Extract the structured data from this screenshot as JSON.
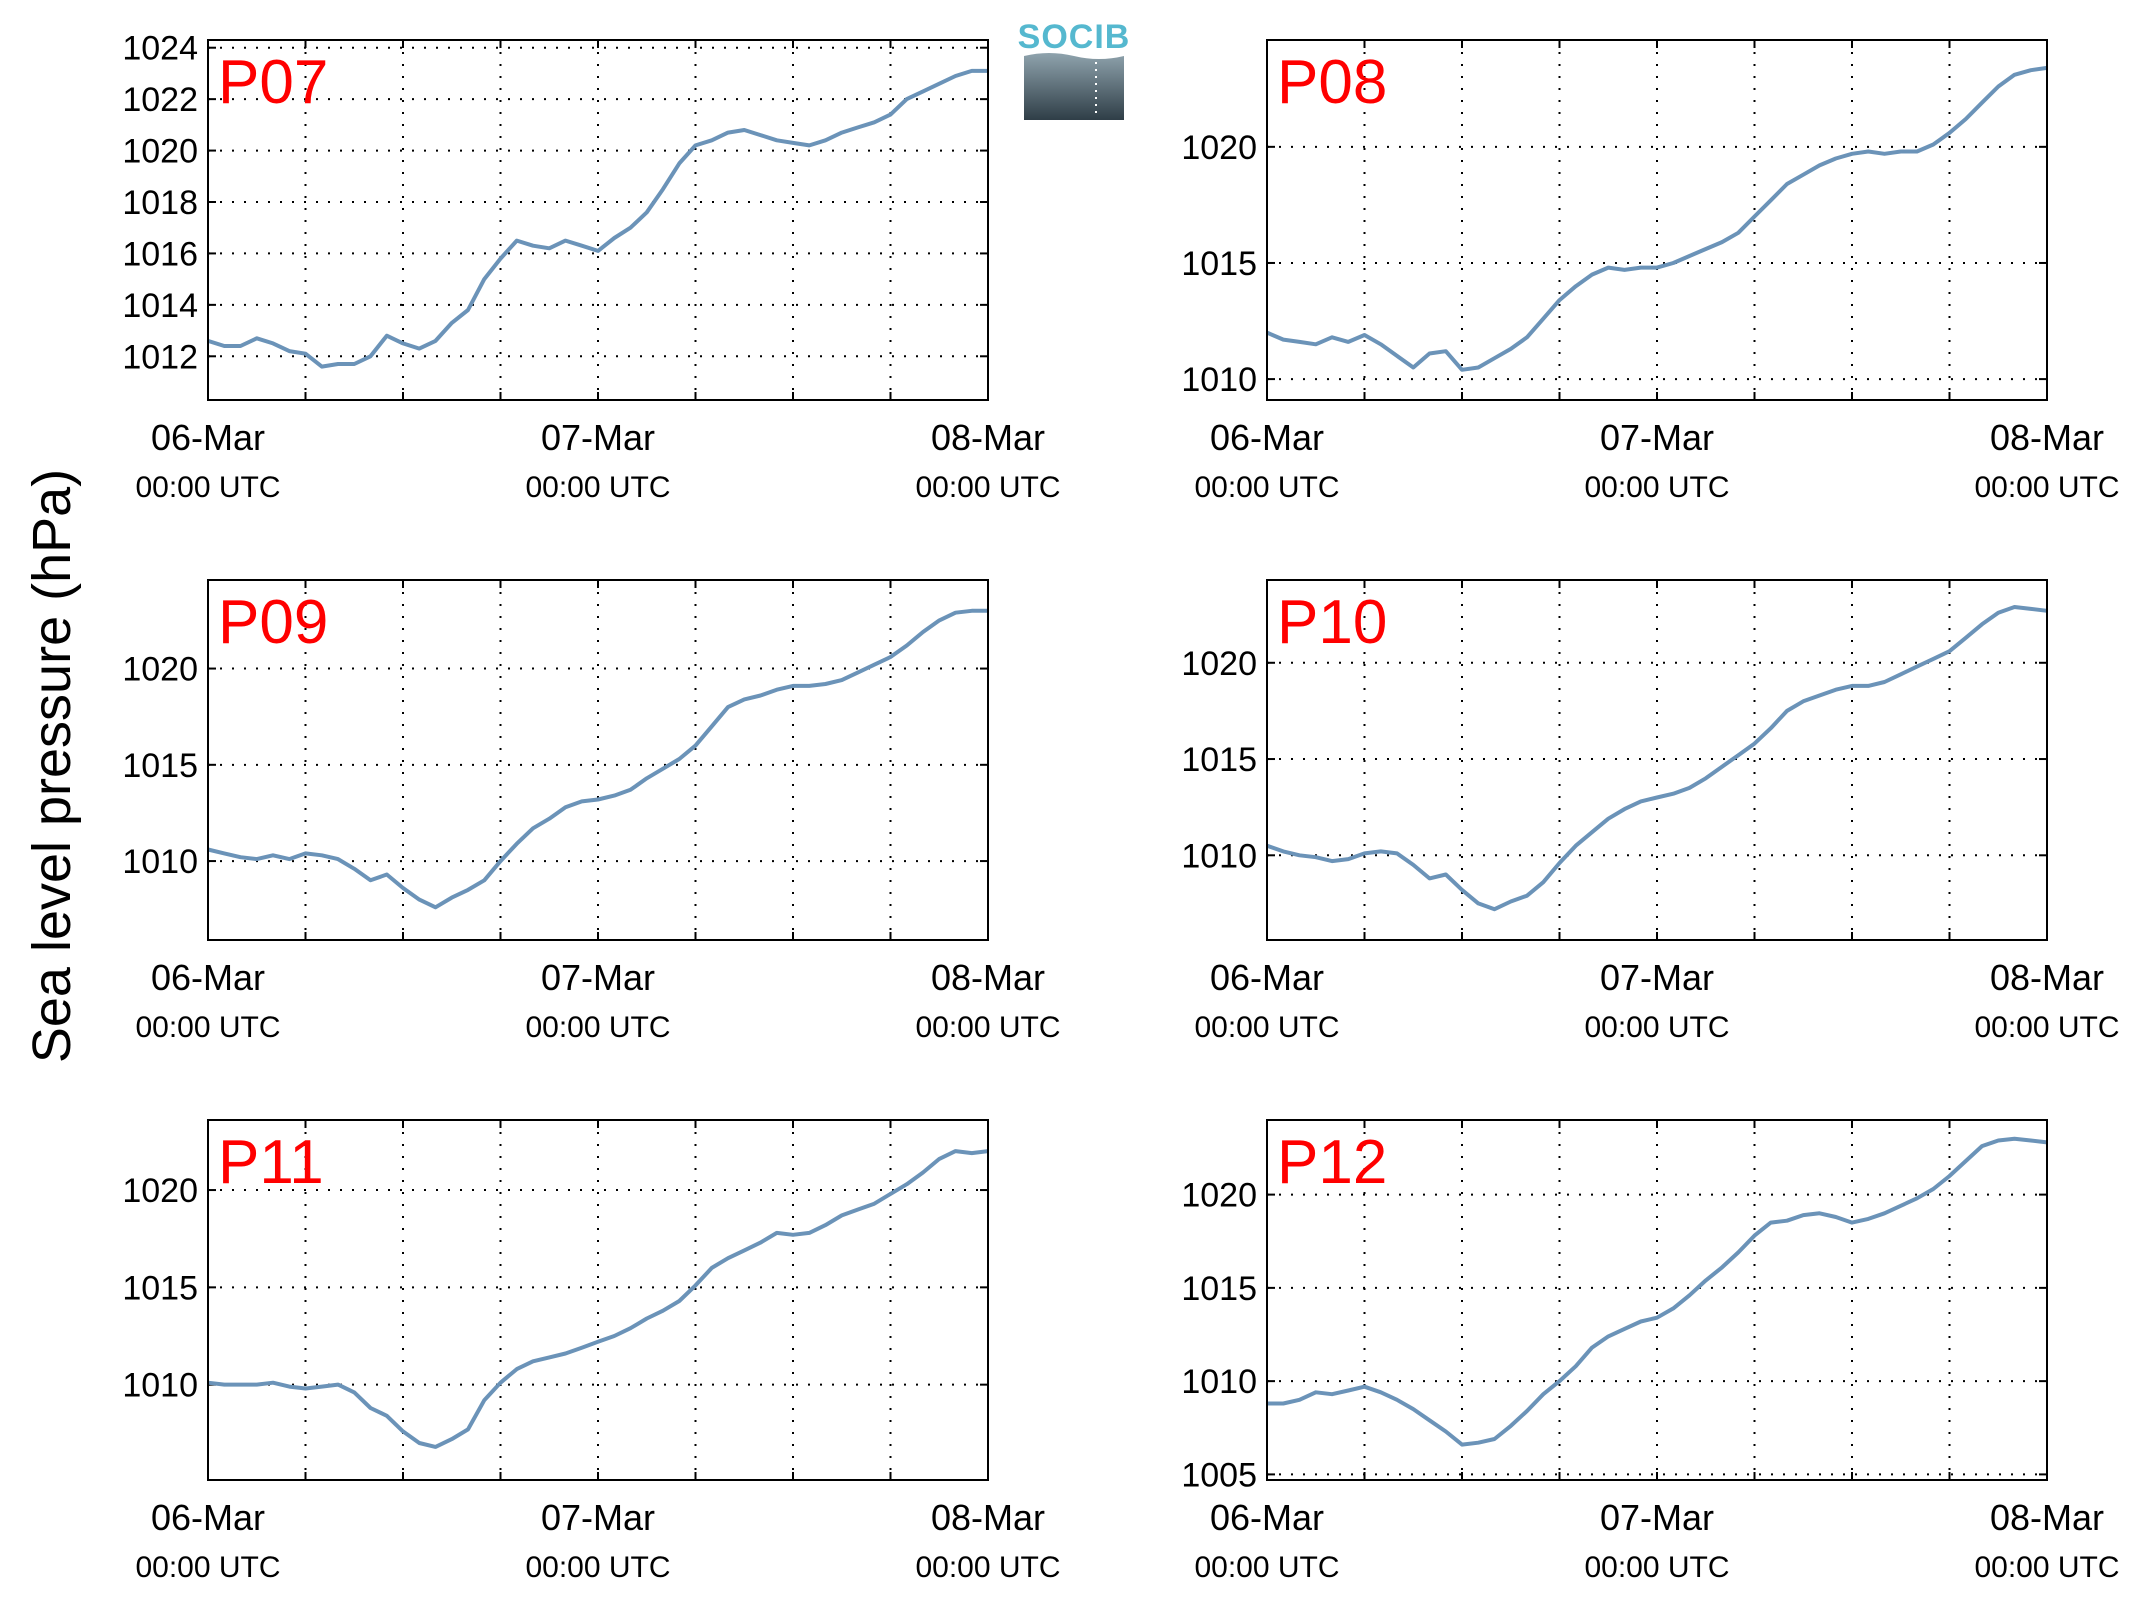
{
  "ylabel": "Sea level pressure (hPa)",
  "logo_text": "SOCIB",
  "colors": {
    "series": "#6b93b8",
    "panel_label": "#ff0000",
    "logo_text": "#55b8cf",
    "logo_top": "#8fa3ad",
    "logo_bottom": "#2f3e47"
  },
  "x_ticks": [
    {
      "value": 0,
      "line1": "06-Mar",
      "line2": "00:00 UTC"
    },
    {
      "value": 24,
      "line1": "07-Mar",
      "line2": "00:00 UTC"
    },
    {
      "value": 48,
      "line1": "08-Mar",
      "line2": "00:00 UTC"
    }
  ],
  "chart_data": [
    {
      "type": "line",
      "label": "P07",
      "grid": true,
      "xlim": [
        0,
        48
      ],
      "ylim": [
        1010.3,
        1024.3
      ],
      "yticks": [
        1012,
        1014,
        1016,
        1018,
        1020,
        1022,
        1024
      ],
      "x": [
        0,
        1,
        2,
        3,
        4,
        5,
        6,
        7,
        8,
        9,
        10,
        11,
        12,
        13,
        14,
        15,
        16,
        17,
        18,
        19,
        20,
        21,
        22,
        23,
        24,
        25,
        26,
        27,
        28,
        29,
        30,
        31,
        32,
        33,
        34,
        35,
        36,
        37,
        38,
        39,
        40,
        41,
        42,
        43,
        44,
        45,
        46,
        47,
        48
      ],
      "y": [
        1012.6,
        1012.4,
        1012.4,
        1012.7,
        1012.5,
        1012.2,
        1012.1,
        1011.6,
        1011.7,
        1011.7,
        1012.0,
        1012.8,
        1012.5,
        1012.3,
        1012.6,
        1013.3,
        1013.8,
        1015.0,
        1015.8,
        1016.5,
        1016.3,
        1016.2,
        1016.5,
        1016.3,
        1016.1,
        1016.6,
        1017.0,
        1017.6,
        1018.5,
        1019.5,
        1020.2,
        1020.4,
        1020.7,
        1020.8,
        1020.6,
        1020.4,
        1020.3,
        1020.2,
        1020.4,
        1020.7,
        1020.9,
        1021.1,
        1021.4,
        1022.0,
        1022.3,
        1022.6,
        1022.9,
        1023.1,
        1023.1
      ]
    },
    {
      "type": "line",
      "label": "P08",
      "grid": true,
      "xlim": [
        0,
        48
      ],
      "ylim": [
        1009.1,
        1024.6
      ],
      "yticks": [
        1010,
        1015,
        1020
      ],
      "x": [
        0,
        1,
        2,
        3,
        4,
        5,
        6,
        7,
        8,
        9,
        10,
        11,
        12,
        13,
        14,
        15,
        16,
        17,
        18,
        19,
        20,
        21,
        22,
        23,
        24,
        25,
        26,
        27,
        28,
        29,
        30,
        31,
        32,
        33,
        34,
        35,
        36,
        37,
        38,
        39,
        40,
        41,
        42,
        43,
        44,
        45,
        46,
        47,
        48
      ],
      "y": [
        1012.0,
        1011.7,
        1011.6,
        1011.5,
        1011.8,
        1011.6,
        1011.9,
        1011.5,
        1011.0,
        1010.5,
        1011.1,
        1011.2,
        1010.4,
        1010.5,
        1010.9,
        1011.3,
        1011.8,
        1012.6,
        1013.4,
        1014.0,
        1014.5,
        1014.8,
        1014.7,
        1014.8,
        1014.8,
        1015.0,
        1015.3,
        1015.6,
        1015.9,
        1016.3,
        1017.0,
        1017.7,
        1018.4,
        1018.8,
        1019.2,
        1019.5,
        1019.7,
        1019.8,
        1019.7,
        1019.8,
        1019.8,
        1020.1,
        1020.6,
        1021.2,
        1021.9,
        1022.6,
        1023.1,
        1023.3,
        1023.4
      ]
    },
    {
      "type": "line",
      "label": "P09",
      "grid": true,
      "xlim": [
        0,
        48
      ],
      "ylim": [
        1005.9,
        1024.6
      ],
      "yticks": [
        1010,
        1015,
        1020
      ],
      "x": [
        0,
        1,
        2,
        3,
        4,
        5,
        6,
        7,
        8,
        9,
        10,
        11,
        12,
        13,
        14,
        15,
        16,
        17,
        18,
        19,
        20,
        21,
        22,
        23,
        24,
        25,
        26,
        27,
        28,
        29,
        30,
        31,
        32,
        33,
        34,
        35,
        36,
        37,
        38,
        39,
        40,
        41,
        42,
        43,
        44,
        45,
        46,
        47,
        48
      ],
      "y": [
        1010.6,
        1010.4,
        1010.2,
        1010.1,
        1010.3,
        1010.1,
        1010.4,
        1010.3,
        1010.1,
        1009.6,
        1009.0,
        1009.3,
        1008.6,
        1008.0,
        1007.6,
        1008.1,
        1008.5,
        1009.0,
        1010.0,
        1010.9,
        1011.7,
        1012.2,
        1012.8,
        1013.1,
        1013.2,
        1013.4,
        1013.7,
        1014.3,
        1014.8,
        1015.3,
        1016.0,
        1017.0,
        1018.0,
        1018.4,
        1018.6,
        1018.9,
        1019.1,
        1019.1,
        1019.2,
        1019.4,
        1019.8,
        1020.2,
        1020.6,
        1021.2,
        1021.9,
        1022.5,
        1022.9,
        1023.0,
        1023.0
      ]
    },
    {
      "type": "line",
      "label": "P10",
      "grid": true,
      "xlim": [
        0,
        48
      ],
      "ylim": [
        1005.6,
        1024.3
      ],
      "yticks": [
        1010,
        1015,
        1020
      ],
      "x": [
        0,
        1,
        2,
        3,
        4,
        5,
        6,
        7,
        8,
        9,
        10,
        11,
        12,
        13,
        14,
        15,
        16,
        17,
        18,
        19,
        20,
        21,
        22,
        23,
        24,
        25,
        26,
        27,
        28,
        29,
        30,
        31,
        32,
        33,
        34,
        35,
        36,
        37,
        38,
        39,
        40,
        41,
        42,
        43,
        44,
        45,
        46,
        47,
        48
      ],
      "y": [
        1010.5,
        1010.2,
        1010.0,
        1009.9,
        1009.7,
        1009.8,
        1010.1,
        1010.2,
        1010.1,
        1009.5,
        1008.8,
        1009.0,
        1008.2,
        1007.5,
        1007.2,
        1007.6,
        1007.9,
        1008.6,
        1009.6,
        1010.5,
        1011.2,
        1011.9,
        1012.4,
        1012.8,
        1013.0,
        1013.2,
        1013.5,
        1014.0,
        1014.6,
        1015.2,
        1015.8,
        1016.6,
        1017.5,
        1018.0,
        1018.3,
        1018.6,
        1018.8,
        1018.8,
        1019.0,
        1019.4,
        1019.8,
        1020.2,
        1020.6,
        1021.3,
        1022.0,
        1022.6,
        1022.9,
        1022.8,
        1022.7
      ]
    },
    {
      "type": "line",
      "label": "P11",
      "grid": true,
      "xlim": [
        0,
        48
      ],
      "ylim": [
        1005.1,
        1023.6
      ],
      "yticks": [
        1010,
        1015,
        1020
      ],
      "x": [
        0,
        1,
        2,
        3,
        4,
        5,
        6,
        7,
        8,
        9,
        10,
        11,
        12,
        13,
        14,
        15,
        16,
        17,
        18,
        19,
        20,
        21,
        22,
        23,
        24,
        25,
        26,
        27,
        28,
        29,
        30,
        31,
        32,
        33,
        34,
        35,
        36,
        37,
        38,
        39,
        40,
        41,
        42,
        43,
        44,
        45,
        46,
        47,
        48
      ],
      "y": [
        1010.1,
        1010.0,
        1010.0,
        1010.0,
        1010.1,
        1009.9,
        1009.8,
        1009.9,
        1010.0,
        1009.6,
        1008.8,
        1008.4,
        1007.6,
        1007.0,
        1006.8,
        1007.2,
        1007.7,
        1009.2,
        1010.1,
        1010.8,
        1011.2,
        1011.4,
        1011.6,
        1011.9,
        1012.2,
        1012.5,
        1012.9,
        1013.4,
        1013.8,
        1014.3,
        1015.1,
        1016.0,
        1016.5,
        1016.9,
        1017.3,
        1017.8,
        1017.7,
        1017.8,
        1018.2,
        1018.7,
        1019.0,
        1019.3,
        1019.8,
        1020.3,
        1020.9,
        1021.6,
        1022.0,
        1021.9,
        1022.0
      ]
    },
    {
      "type": "line",
      "label": "P12",
      "grid": true,
      "xlim": [
        0,
        48
      ],
      "ylim": [
        1004.7,
        1024.0
      ],
      "yticks": [
        1005,
        1010,
        1015,
        1020
      ],
      "x": [
        0,
        1,
        2,
        3,
        4,
        5,
        6,
        7,
        8,
        9,
        10,
        11,
        12,
        13,
        14,
        15,
        16,
        17,
        18,
        19,
        20,
        21,
        22,
        23,
        24,
        25,
        26,
        27,
        28,
        29,
        30,
        31,
        32,
        33,
        34,
        35,
        36,
        37,
        38,
        39,
        40,
        41,
        42,
        43,
        44,
        45,
        46,
        47,
        48
      ],
      "y": [
        1008.8,
        1008.8,
        1009.0,
        1009.4,
        1009.3,
        1009.5,
        1009.7,
        1009.4,
        1009.0,
        1008.5,
        1007.9,
        1007.3,
        1006.6,
        1006.7,
        1006.9,
        1007.6,
        1008.4,
        1009.3,
        1010.0,
        1010.8,
        1011.8,
        1012.4,
        1012.8,
        1013.2,
        1013.4,
        1013.9,
        1014.6,
        1015.4,
        1016.1,
        1016.9,
        1017.8,
        1018.5,
        1018.6,
        1018.9,
        1019.0,
        1018.8,
        1018.5,
        1018.7,
        1019.0,
        1019.4,
        1019.8,
        1020.3,
        1021.0,
        1021.8,
        1022.6,
        1022.9,
        1023.0,
        1022.9,
        1022.8
      ]
    }
  ]
}
